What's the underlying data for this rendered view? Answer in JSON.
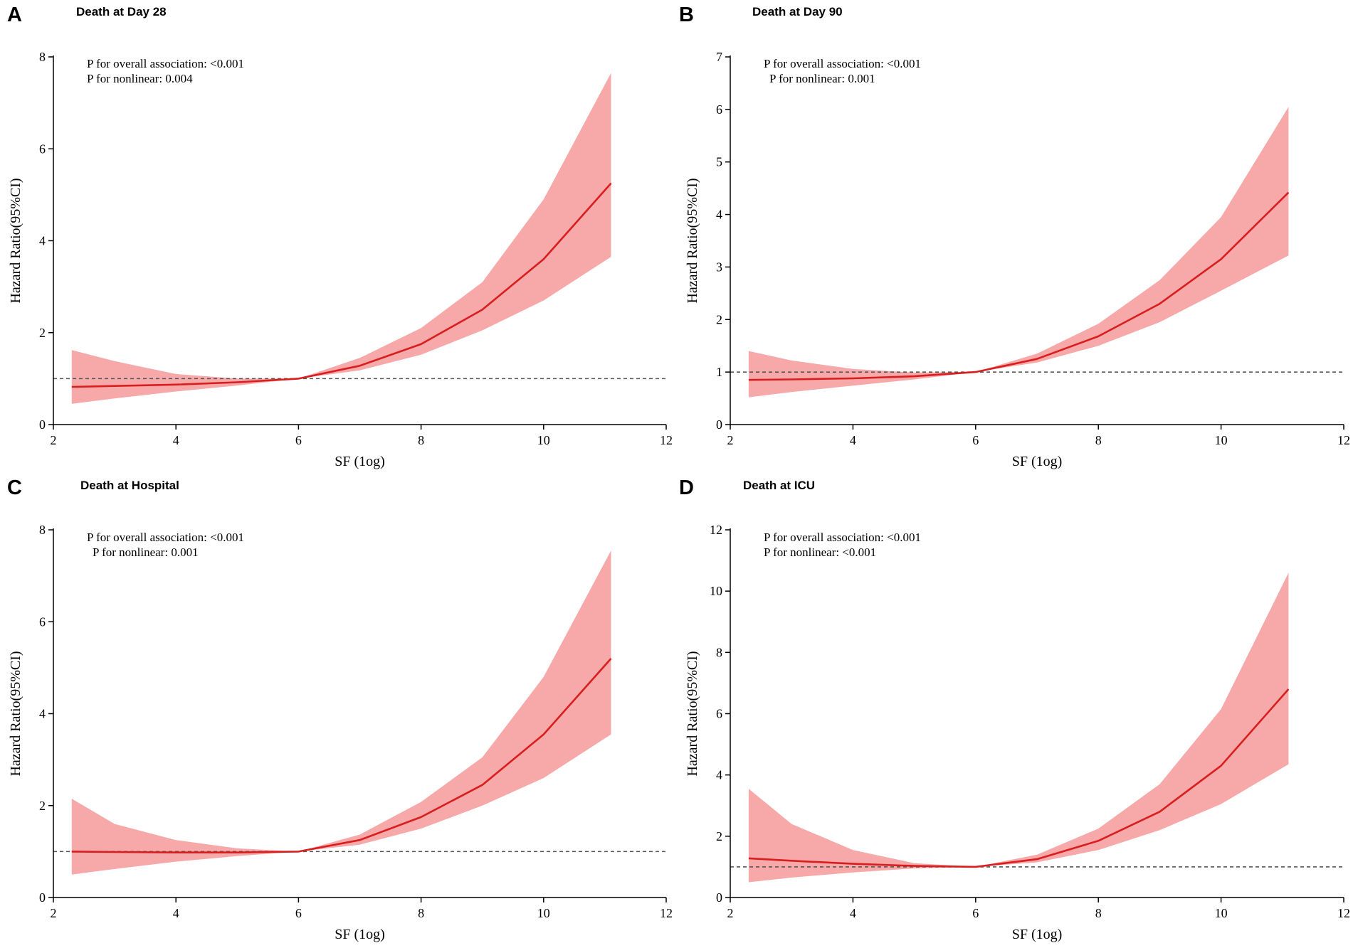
{
  "figure": {
    "colors": {
      "line": "#d81e1e",
      "band": "#f7a8a8",
      "reference": "#555555",
      "axis": "#000000"
    }
  },
  "chart_data": [
    {
      "panel": "A",
      "type": "line",
      "title": "Death at Day 28",
      "xlabel": "SF (1og)",
      "ylabel": "Hazard Ratio(95%CI)",
      "xlim": [
        2,
        12
      ],
      "ylim": [
        0,
        8
      ],
      "xticks": [
        2,
        4,
        6,
        8,
        10,
        12
      ],
      "yticks": [
        0,
        2,
        4,
        6,
        8
      ],
      "reference_line": 1,
      "annotations": [
        "P for overall association:  <0.001",
        "P for nonlinear: 0.004"
      ],
      "x": [
        2.3,
        3,
        4,
        5,
        6,
        7,
        8,
        9,
        10,
        11.1
      ],
      "hr": [
        0.82,
        0.84,
        0.87,
        0.92,
        1.0,
        1.28,
        1.75,
        2.5,
        3.6,
        5.25
      ],
      "lower": [
        0.45,
        0.57,
        0.72,
        0.85,
        1.0,
        1.18,
        1.52,
        2.05,
        2.7,
        3.65
      ],
      "upper": [
        1.62,
        1.38,
        1.1,
        1.0,
        1.0,
        1.45,
        2.1,
        3.1,
        4.9,
        7.65
      ]
    },
    {
      "panel": "B",
      "type": "line",
      "title": "Death at Day 90",
      "xlabel": "SF (1og)",
      "ylabel": "Hazard Ratio(95%CI)",
      "xlim": [
        2,
        12
      ],
      "ylim": [
        0,
        7
      ],
      "xticks": [
        2,
        4,
        6,
        8,
        10,
        12
      ],
      "yticks": [
        0,
        1,
        2,
        3,
        4,
        5,
        6,
        7
      ],
      "reference_line": 1,
      "annotations": [
        "P for overall association:  <0.001",
        "P for nonlinear: 0.001"
      ],
      "x": [
        2.3,
        3,
        4,
        5,
        6,
        7,
        8,
        9,
        10,
        11.1
      ],
      "hr": [
        0.85,
        0.86,
        0.88,
        0.92,
        1.0,
        1.25,
        1.68,
        2.3,
        3.15,
        4.42
      ],
      "lower": [
        0.52,
        0.62,
        0.74,
        0.86,
        1.0,
        1.18,
        1.5,
        1.95,
        2.55,
        3.22
      ],
      "upper": [
        1.4,
        1.22,
        1.06,
        0.99,
        1.0,
        1.35,
        1.92,
        2.75,
        3.95,
        6.05
      ]
    },
    {
      "panel": "C",
      "type": "line",
      "title": "Death at Hospital",
      "xlabel": "SF (1og)",
      "ylabel": "Hazard Ratio(95%CI)",
      "xlim": [
        2,
        12
      ],
      "ylim": [
        0,
        8
      ],
      "xticks": [
        2,
        4,
        6,
        8,
        10,
        12
      ],
      "yticks": [
        0,
        2,
        4,
        6,
        8
      ],
      "reference_line": 1,
      "annotations": [
        "P for overall association:  <0.001",
        "P for nonlinear: 0.001"
      ],
      "x": [
        2.3,
        3,
        4,
        5,
        6,
        7,
        8,
        9,
        10,
        11.1
      ],
      "hr": [
        1.0,
        0.99,
        0.98,
        0.98,
        1.0,
        1.25,
        1.75,
        2.45,
        3.55,
        5.2
      ],
      "lower": [
        0.5,
        0.62,
        0.78,
        0.9,
        1.0,
        1.15,
        1.5,
        2.0,
        2.6,
        3.55
      ],
      "upper": [
        2.15,
        1.6,
        1.25,
        1.07,
        1.0,
        1.37,
        2.08,
        3.05,
        4.8,
        7.55
      ]
    },
    {
      "panel": "D",
      "type": "line",
      "title": "Death at ICU",
      "xlabel": "SF (1og)",
      "ylabel": "Hazard Ratio(95%CI)",
      "xlim": [
        2,
        12
      ],
      "ylim": [
        0,
        12
      ],
      "xticks": [
        2,
        4,
        6,
        8,
        10,
        12
      ],
      "yticks": [
        0,
        2,
        4,
        6,
        8,
        10,
        12
      ],
      "reference_line": 1,
      "annotations": [
        "P for overall association:  <0.001",
        "P for nonlinear:  <0.001"
      ],
      "x": [
        2.3,
        3,
        4,
        5,
        6,
        7,
        8,
        9,
        10,
        11.1
      ],
      "hr": [
        1.28,
        1.2,
        1.1,
        1.03,
        1.0,
        1.25,
        1.85,
        2.8,
        4.3,
        6.8
      ],
      "lower": [
        0.5,
        0.65,
        0.82,
        0.95,
        1.0,
        1.15,
        1.55,
        2.2,
        3.05,
        4.35
      ],
      "upper": [
        3.55,
        2.4,
        1.55,
        1.12,
        1.0,
        1.4,
        2.25,
        3.7,
        6.15,
        10.6
      ]
    }
  ]
}
